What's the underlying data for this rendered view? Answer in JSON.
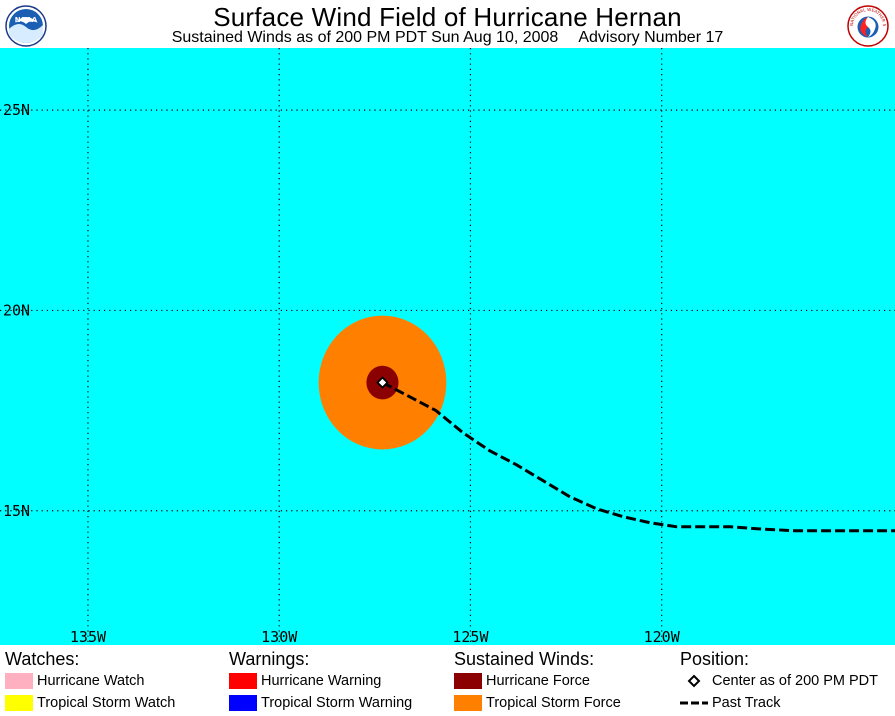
{
  "header": {
    "title": "Surface Wind Field of Hurricane Hernan",
    "subtitle_winds": "Sustained Winds as of 200 PM PDT Sun Aug 10, 2008",
    "subtitle_advisory": "Advisory Number 17",
    "logo_left": "NOAA",
    "logo_right": "NATIONAL WEATHER SERVICE"
  },
  "map": {
    "ocean_color": "#00ffff",
    "lon_range": [
      -137.3,
      -113.9
    ],
    "lat_range": [
      11.65,
      26.55
    ],
    "lat_ticks": [
      {
        "value": 25,
        "label": "25N"
      },
      {
        "value": 20,
        "label": "20N"
      },
      {
        "value": 15,
        "label": "15N"
      }
    ],
    "lon_ticks": [
      {
        "value": -135,
        "label": "135W"
      },
      {
        "value": -130,
        "label": "130W"
      },
      {
        "value": -125,
        "label": "125W"
      },
      {
        "value": -120,
        "label": "120W"
      }
    ],
    "center": {
      "lon": -127.3,
      "lat": 18.2
    },
    "tropical_storm_radius_deg": 1.67,
    "hurricane_radius_deg": 0.42,
    "past_track": [
      [
        -127.3,
        18.2
      ],
      [
        -126.6,
        17.85
      ],
      [
        -125.9,
        17.5
      ],
      [
        -125.2,
        16.95
      ],
      [
        -124.5,
        16.5
      ],
      [
        -123.8,
        16.15
      ],
      [
        -123.1,
        15.75
      ],
      [
        -122.4,
        15.35
      ],
      [
        -121.7,
        15.05
      ],
      [
        -121.0,
        14.85
      ],
      [
        -120.3,
        14.7
      ],
      [
        -119.6,
        14.6
      ],
      [
        -118.9,
        14.6
      ],
      [
        -118.2,
        14.6
      ],
      [
        -117.5,
        14.55
      ],
      [
        -116.5,
        14.5
      ],
      [
        -115.5,
        14.5
      ],
      [
        -113.9,
        14.5
      ]
    ]
  },
  "legend": {
    "watches": {
      "heading": "Watches:",
      "items": [
        {
          "label": "Hurricane Watch",
          "color": "#ffb0c0"
        },
        {
          "label": "Tropical Storm Watch",
          "color": "#ffff00"
        }
      ]
    },
    "warnings": {
      "heading": "Warnings:",
      "items": [
        {
          "label": "Hurricane Warning",
          "color": "#ff0000"
        },
        {
          "label": "Tropical Storm Warning",
          "color": "#0000ff"
        }
      ]
    },
    "winds": {
      "heading": "Sustained Winds:",
      "items": [
        {
          "label": "Hurricane Force",
          "color": "#8b0000"
        },
        {
          "label": "Tropical Storm Force",
          "color": "#ff8000"
        }
      ]
    },
    "position": {
      "heading": "Position:",
      "center_label": "Center as of 200 PM PDT",
      "track_label": "Past Track"
    }
  }
}
